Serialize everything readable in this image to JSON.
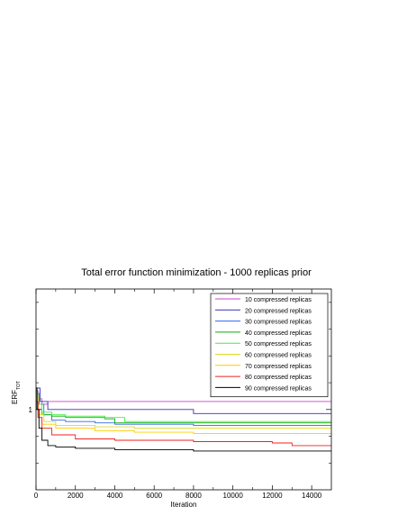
{
  "chart_data": {
    "type": "line",
    "title": "Total error function minimization - 1000 replicas prior",
    "xlabel": "Iteration",
    "ylabel": "ERF",
    "ylabel_sub": "TOT",
    "xlim": [
      0,
      15000
    ],
    "ylim": [
      0.7,
      1.45
    ],
    "xticks": [
      0,
      2000,
      4000,
      6000,
      8000,
      10000,
      12000,
      14000
    ],
    "yticks": [
      1
    ],
    "ytick_labels": [
      "1"
    ],
    "grid": false,
    "legend_position": "top-right",
    "series": [
      {
        "name": "10 compressed replicas",
        "color": "#cc44cc",
        "x": [
          0,
          100,
          300,
          600,
          15000
        ],
        "y": [
          1.07,
          1.04,
          1.02,
          1.03,
          1.03
        ]
      },
      {
        "name": "20 compressed replicas",
        "color": "#3333aa",
        "x": [
          0,
          200,
          600,
          1000,
          7500,
          8000,
          14000,
          15000
        ],
        "y": [
          1.08,
          1.03,
          1.0,
          1.0,
          1.0,
          0.985,
          0.985,
          0.985
        ]
      },
      {
        "name": "30 compressed replicas",
        "color": "#3366ee",
        "x": [
          0,
          150,
          400,
          800,
          1500,
          3000,
          4000,
          8000,
          14000,
          15000
        ],
        "y": [
          1.06,
          1.02,
          0.98,
          0.96,
          0.955,
          0.95,
          0.945,
          0.94,
          0.94,
          0.935
        ]
      },
      {
        "name": "40 compressed replicas",
        "color": "#11aa11",
        "x": [
          0,
          100,
          300,
          800,
          1500,
          3500,
          4000,
          15000
        ],
        "y": [
          1.05,
          1.0,
          0.98,
          0.975,
          0.97,
          0.965,
          0.95,
          0.95
        ]
      },
      {
        "name": "50 compressed replicas",
        "color": "#44ee44",
        "x": [
          0,
          100,
          300,
          800,
          1500,
          3500,
          4500,
          15000
        ],
        "y": [
          1.06,
          1.02,
          0.99,
          0.98,
          0.975,
          0.97,
          0.955,
          0.955
        ]
      },
      {
        "name": "60 compressed replicas",
        "color": "#dddd22",
        "x": [
          0,
          100,
          400,
          1000,
          3000,
          5000,
          15000
        ],
        "y": [
          1.05,
          0.98,
          0.955,
          0.94,
          0.935,
          0.93,
          0.925
        ]
      },
      {
        "name": "70 compressed replicas",
        "color": "#ffcc00",
        "x": [
          0,
          100,
          300,
          1000,
          3000,
          5000,
          8000,
          12000,
          15000
        ],
        "y": [
          1.04,
          0.97,
          0.945,
          0.93,
          0.92,
          0.915,
          0.91,
          0.91,
          0.905
        ]
      },
      {
        "name": "80 compressed replicas",
        "color": "#ee2222",
        "x": [
          0,
          100,
          300,
          800,
          2000,
          4000,
          8000,
          12000,
          13000,
          15000
        ],
        "y": [
          1.03,
          0.97,
          0.93,
          0.905,
          0.89,
          0.885,
          0.88,
          0.875,
          0.865,
          0.865
        ]
      },
      {
        "name": "90 compressed replicas",
        "color": "#000000",
        "x": [
          0,
          50,
          150,
          300,
          600,
          1000,
          2000,
          4000,
          8000,
          15000
        ],
        "y": [
          1.08,
          1.0,
          0.93,
          0.885,
          0.865,
          0.86,
          0.855,
          0.85,
          0.845,
          0.845
        ]
      }
    ]
  }
}
